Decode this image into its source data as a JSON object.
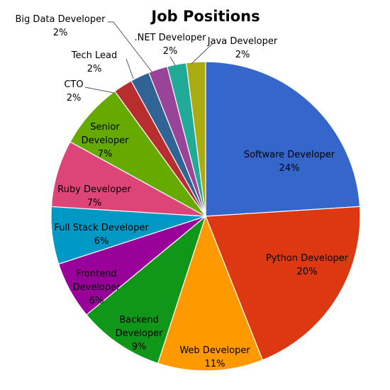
{
  "chart_data": {
    "type": "pie",
    "title": "Job Positions",
    "slices": [
      {
        "label": "Software Developer",
        "pct_label": "24%",
        "value": 24,
        "color": "#3466cc"
      },
      {
        "label": "Python Developer",
        "pct_label": "20%",
        "value": 20,
        "color": "#dc3912"
      },
      {
        "label": "Web Developer",
        "pct_label": "11%",
        "value": 11,
        "color": "#ff9900"
      },
      {
        "label": "Backend Developer",
        "pct_label": "9%",
        "value": 9,
        "color": "#109618"
      },
      {
        "label": "Frontend Developer",
        "pct_label": "6%",
        "value": 6,
        "color": "#990099"
      },
      {
        "label": "Full Stack Developer",
        "pct_label": "6%",
        "value": 6,
        "color": "#0099c6"
      },
      {
        "label": "Ruby Developer",
        "pct_label": "7%",
        "value": 7,
        "color": "#dd4477"
      },
      {
        "label": "Senior Developer",
        "pct_label": "7%",
        "value": 7,
        "color": "#66aa00"
      },
      {
        "label": "CTO",
        "pct_label": "2%",
        "value": 2,
        "color": "#b82e2e"
      },
      {
        "label": "Tech Lead",
        "pct_label": "2%",
        "value": 2,
        "color": "#316395"
      },
      {
        "label": "Big Data Developer",
        "pct_label": "2%",
        "value": 2,
        "color": "#994499"
      },
      {
        "label": ".NET Developer",
        "pct_label": "2%",
        "value": 2,
        "color": "#22aa99"
      },
      {
        "label": "Java Developer",
        "pct_label": "2%",
        "value": 2,
        "color": "#aaaa11"
      }
    ]
  }
}
